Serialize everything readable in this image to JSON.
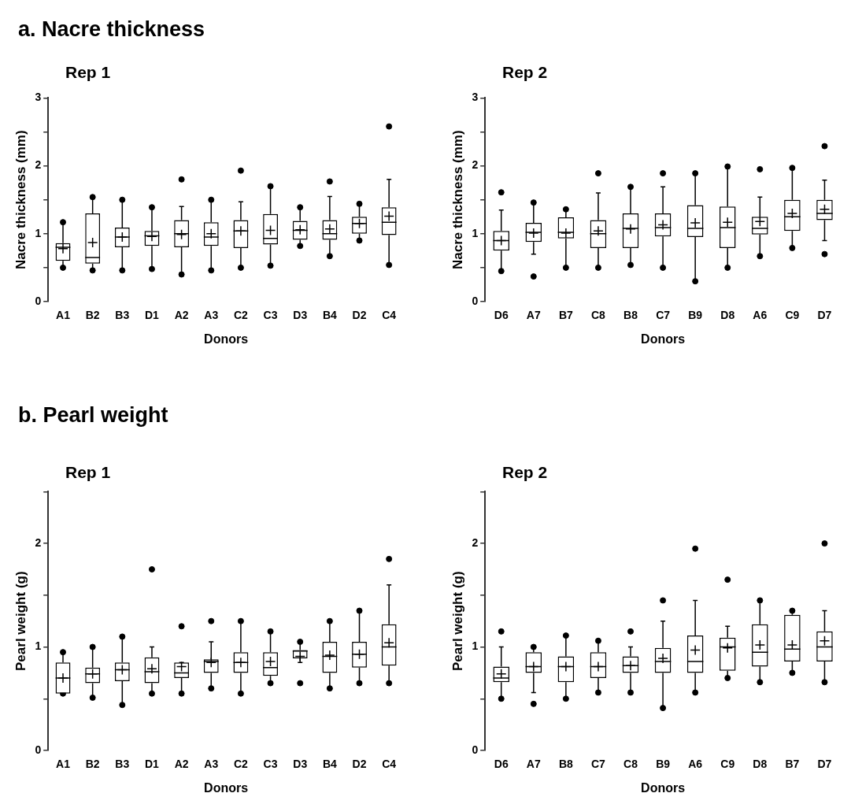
{
  "chart_data": [
    {
      "type": "box",
      "title": "a. Nacre thickness",
      "subtitle": "Rep 1",
      "xlabel": "Donors",
      "ylabel": "Nacre thickness (mm)",
      "categories": [
        "A1",
        "B2",
        "B3",
        "D1",
        "A2",
        "A3",
        "C2",
        "C3",
        "D3",
        "B4",
        "D2",
        "C4"
      ],
      "ylim": [
        0,
        3
      ],
      "yticks": [
        0,
        {
          "value": 0.5,
          "label": null
        },
        1,
        {
          "value": 1.5,
          "label": null
        },
        2,
        {
          "value": 2.5,
          "label": null
        },
        3
      ],
      "marker": "circle",
      "grid": false,
      "legend": false,
      "series": [
        {
          "color": "#000000",
          "boxes": [
            {
              "low": 0.5,
              "q1": 0.6,
              "median": 0.8,
              "q3": 0.86,
              "high": 1.17,
              "mean": 0.78,
              "outliers": [
                1.17,
                0.5
              ]
            },
            {
              "low": 0.46,
              "q1": 0.56,
              "median": 0.65,
              "q3": 1.3,
              "high": 1.54,
              "mean": 0.87,
              "outliers": [
                1.54,
                0.46
              ]
            },
            {
              "low": 0.46,
              "q1": 0.8,
              "median": 0.95,
              "q3": 1.09,
              "high": 1.5,
              "mean": 0.95,
              "outliers": [
                1.5,
                0.46
              ]
            },
            {
              "low": 0.48,
              "q1": 0.82,
              "median": 0.97,
              "q3": 1.04,
              "high": 1.39,
              "mean": 0.96,
              "outliers": [
                1.39,
                0.48
              ]
            },
            {
              "low": 0.4,
              "q1": 0.8,
              "median": 1.0,
              "q3": 1.2,
              "high": 1.4,
              "mean": 0.99,
              "outliers": [
                1.8,
                0.4
              ]
            },
            {
              "low": 0.46,
              "q1": 0.82,
              "median": 0.95,
              "q3": 1.17,
              "high": 1.5,
              "mean": 1.0,
              "outliers": [
                1.5,
                0.46
              ]
            },
            {
              "low": 0.5,
              "q1": 0.79,
              "median": 1.04,
              "q3": 1.2,
              "high": 1.47,
              "mean": 1.04,
              "outliers": [
                1.93,
                0.5
              ]
            },
            {
              "low": 0.53,
              "q1": 0.84,
              "median": 0.93,
              "q3": 1.29,
              "high": 1.7,
              "mean": 1.05,
              "outliers": [
                1.7,
                0.53
              ]
            },
            {
              "low": 0.82,
              "q1": 0.91,
              "median": 1.05,
              "q3": 1.19,
              "high": 1.39,
              "mean": 1.06,
              "outliers": [
                1.39,
                0.82
              ]
            },
            {
              "low": 0.67,
              "q1": 0.91,
              "median": 1.0,
              "q3": 1.2,
              "high": 1.55,
              "mean": 1.07,
              "outliers": [
                1.77,
                0.67
              ]
            },
            {
              "low": 0.9,
              "q1": 1.0,
              "median": 1.15,
              "q3": 1.25,
              "high": 1.44,
              "mean": 1.15,
              "outliers": [
                1.44,
                0.9
              ]
            },
            {
              "low": 0.54,
              "q1": 0.98,
              "median": 1.17,
              "q3": 1.39,
              "high": 1.8,
              "mean": 1.26,
              "outliers": [
                2.58,
                0.54
              ]
            }
          ]
        }
      ]
    },
    {
      "type": "box",
      "subtitle": "Rep 2",
      "xlabel": "Donors",
      "ylabel": "Nacre thickness (mm)",
      "categories": [
        "D6",
        "A7",
        "B7",
        "C8",
        "B8",
        "C7",
        "B9",
        "D8",
        "A6",
        "C9",
        "D7"
      ],
      "ylim": [
        0,
        3
      ],
      "yticks": [
        0,
        {
          "value": 0.5,
          "label": null
        },
        1,
        {
          "value": 1.5,
          "label": null
        },
        2,
        {
          "value": 2.5,
          "label": null
        },
        3
      ],
      "marker": "circle",
      "grid": false,
      "legend": false,
      "series": [
        {
          "color": "#000000",
          "boxes": [
            {
              "low": 0.45,
              "q1": 0.75,
              "median": 0.9,
              "q3": 1.04,
              "high": 1.35,
              "mean": 0.9,
              "outliers": [
                1.61,
                0.45
              ]
            },
            {
              "low": 0.7,
              "q1": 0.88,
              "median": 1.02,
              "q3": 1.16,
              "high": 1.46,
              "mean": 1.01,
              "outliers": [
                1.46,
                0.37
              ]
            },
            {
              "low": 0.5,
              "q1": 0.93,
              "median": 1.02,
              "q3": 1.24,
              "high": 1.36,
              "mean": 1.01,
              "outliers": [
                1.36,
                0.5
              ]
            },
            {
              "low": 0.5,
              "q1": 0.79,
              "median": 1.0,
              "q3": 1.2,
              "high": 1.6,
              "mean": 1.04,
              "outliers": [
                1.89,
                0.5
              ]
            },
            {
              "low": 0.54,
              "q1": 0.79,
              "median": 1.08,
              "q3": 1.3,
              "high": 1.69,
              "mean": 1.07,
              "outliers": [
                1.69,
                0.54
              ]
            },
            {
              "low": 0.5,
              "q1": 0.96,
              "median": 1.09,
              "q3": 1.3,
              "high": 1.69,
              "mean": 1.13,
              "outliers": [
                1.89,
                0.5
              ]
            },
            {
              "low": 0.3,
              "q1": 0.95,
              "median": 1.08,
              "q3": 1.42,
              "high": 1.89,
              "mean": 1.16,
              "outliers": [
                1.89,
                0.3
              ]
            },
            {
              "low": 0.5,
              "q1": 0.79,
              "median": 1.09,
              "q3": 1.4,
              "high": 1.99,
              "mean": 1.17,
              "outliers": [
                1.99,
                0.5
              ]
            },
            {
              "low": 0.67,
              "q1": 0.99,
              "median": 1.08,
              "q3": 1.25,
              "high": 1.54,
              "mean": 1.18,
              "outliers": [
                1.95,
                0.67
              ]
            },
            {
              "low": 0.79,
              "q1": 1.04,
              "median": 1.25,
              "q3": 1.5,
              "high": 1.97,
              "mean": 1.3,
              "outliers": [
                1.97,
                0.79
              ]
            },
            {
              "low": 0.9,
              "q1": 1.2,
              "median": 1.3,
              "q3": 1.5,
              "high": 1.79,
              "mean": 1.36,
              "outliers": [
                2.29,
                0.7
              ]
            }
          ]
        }
      ]
    },
    {
      "type": "box",
      "title": "b. Pearl weight",
      "subtitle": "Rep 1",
      "xlabel": "Donors",
      "ylabel": "Pearl weight (g)",
      "categories": [
        "A1",
        "B2",
        "B3",
        "D1",
        "A2",
        "A3",
        "C2",
        "C3",
        "D3",
        "B4",
        "D2",
        "C4"
      ],
      "ylim": [
        0,
        2.5
      ],
      "yticks": [
        0,
        {
          "value": 0.5,
          "label": null
        },
        1,
        {
          "value": 1.5,
          "label": null
        },
        2,
        {
          "value": 2.5,
          "label": null
        }
      ],
      "marker": "circle",
      "grid": false,
      "legend": false,
      "series": [
        {
          "color": "#000000",
          "boxes": [
            {
              "low": 0.55,
              "q1": 0.55,
              "median": 0.7,
              "q3": 0.85,
              "high": 0.95,
              "mean": 0.7,
              "outliers": [
                0.95,
                0.55
              ]
            },
            {
              "low": 0.51,
              "q1": 0.65,
              "median": 0.74,
              "q3": 0.8,
              "high": 1.0,
              "mean": 0.74,
              "outliers": [
                1.0,
                0.51
              ]
            },
            {
              "low": 0.44,
              "q1": 0.67,
              "median": 0.78,
              "q3": 0.85,
              "high": 1.1,
              "mean": 0.78,
              "outliers": [
                1.1,
                0.44
              ]
            },
            {
              "low": 0.55,
              "q1": 0.65,
              "median": 0.76,
              "q3": 0.9,
              "high": 1.0,
              "mean": 0.79,
              "outliers": [
                1.75,
                0.55
              ]
            },
            {
              "low": 0.55,
              "q1": 0.7,
              "median": 0.75,
              "q3": 0.85,
              "high": 0.85,
              "mean": 0.81,
              "outliers": [
                1.2,
                0.55
              ]
            },
            {
              "low": 0.6,
              "q1": 0.75,
              "median": 0.86,
              "q3": 0.88,
              "high": 1.05,
              "mean": 0.85,
              "outliers": [
                1.25,
                0.6
              ]
            },
            {
              "low": 0.55,
              "q1": 0.75,
              "median": 0.85,
              "q3": 0.95,
              "high": 1.25,
              "mean": 0.85,
              "outliers": [
                1.25,
                0.55
              ]
            },
            {
              "low": 0.65,
              "q1": 0.72,
              "median": 0.8,
              "q3": 0.95,
              "high": 1.15,
              "mean": 0.86,
              "outliers": [
                1.15,
                0.65
              ]
            },
            {
              "low": 0.85,
              "q1": 0.89,
              "median": 0.96,
              "q3": 0.97,
              "high": 1.05,
              "mean": 0.91,
              "outliers": [
                1.05,
                0.65
              ]
            },
            {
              "low": 0.6,
              "q1": 0.75,
              "median": 0.91,
              "q3": 1.05,
              "high": 1.25,
              "mean": 0.92,
              "outliers": [
                1.25,
                0.6
              ]
            },
            {
              "low": 0.65,
              "q1": 0.8,
              "median": 0.93,
              "q3": 1.05,
              "high": 1.35,
              "mean": 0.93,
              "outliers": [
                1.35,
                0.65
              ]
            },
            {
              "low": 0.65,
              "q1": 0.82,
              "median": 1.0,
              "q3": 1.22,
              "high": 1.6,
              "mean": 1.04,
              "outliers": [
                1.85,
                0.65
              ]
            }
          ]
        }
      ]
    },
    {
      "type": "box",
      "subtitle": "Rep 2",
      "xlabel": "Donors",
      "ylabel": "Pearl weight (g)",
      "categories": [
        "D6",
        "A7",
        "B8",
        "C7",
        "C8",
        "B9",
        "A6",
        "C9",
        "D8",
        "B7",
        "D7"
      ],
      "ylim": [
        0,
        2.5
      ],
      "yticks": [
        0,
        {
          "value": 0.5,
          "label": null
        },
        1,
        {
          "value": 1.5,
          "label": null
        },
        2,
        {
          "value": 2.5,
          "label": null
        }
      ],
      "marker": "circle",
      "grid": false,
      "legend": false,
      "series": [
        {
          "color": "#000000",
          "boxes": [
            {
              "low": 0.5,
              "q1": 0.66,
              "median": 0.7,
              "q3": 0.81,
              "high": 1.0,
              "mean": 0.74,
              "outliers": [
                1.15,
                0.5
              ]
            },
            {
              "low": 0.56,
              "q1": 0.75,
              "median": 0.81,
              "q3": 0.95,
              "high": 1.0,
              "mean": 0.81,
              "outliers": [
                1.0,
                0.45
              ]
            },
            {
              "low": 0.5,
              "q1": 0.66,
              "median": 0.81,
              "q3": 0.91,
              "high": 1.11,
              "mean": 0.81,
              "outliers": [
                1.11,
                0.5
              ]
            },
            {
              "low": 0.56,
              "q1": 0.7,
              "median": 0.81,
              "q3": 0.95,
              "high": 1.06,
              "mean": 0.81,
              "outliers": [
                1.06,
                0.56
              ]
            },
            {
              "low": 0.56,
              "q1": 0.75,
              "median": 0.82,
              "q3": 0.91,
              "high": 1.0,
              "mean": 0.82,
              "outliers": [
                1.15,
                0.56
              ]
            },
            {
              "low": 0.41,
              "q1": 0.75,
              "median": 0.86,
              "q3": 0.99,
              "high": 1.25,
              "mean": 0.89,
              "outliers": [
                1.45,
                0.41
              ]
            },
            {
              "low": 0.56,
              "q1": 0.75,
              "median": 0.86,
              "q3": 1.11,
              "high": 1.45,
              "mean": 0.97,
              "outliers": [
                1.95,
                0.56
              ]
            },
            {
              "low": 0.7,
              "q1": 0.77,
              "median": 1.0,
              "q3": 1.09,
              "high": 1.2,
              "mean": 0.99,
              "outliers": [
                1.65,
                0.7
              ]
            },
            {
              "low": 0.66,
              "q1": 0.81,
              "median": 0.95,
              "q3": 1.22,
              "high": 1.45,
              "mean": 1.02,
              "outliers": [
                1.45,
                0.66
              ]
            },
            {
              "low": 0.75,
              "q1": 0.86,
              "median": 0.98,
              "q3": 1.31,
              "high": 1.35,
              "mean": 1.02,
              "outliers": [
                1.35,
                0.75
              ]
            },
            {
              "low": 0.66,
              "q1": 0.86,
              "median": 1.0,
              "q3": 1.15,
              "high": 1.35,
              "mean": 1.06,
              "outliers": [
                2.0,
                0.66
              ]
            }
          ]
        }
      ]
    }
  ]
}
